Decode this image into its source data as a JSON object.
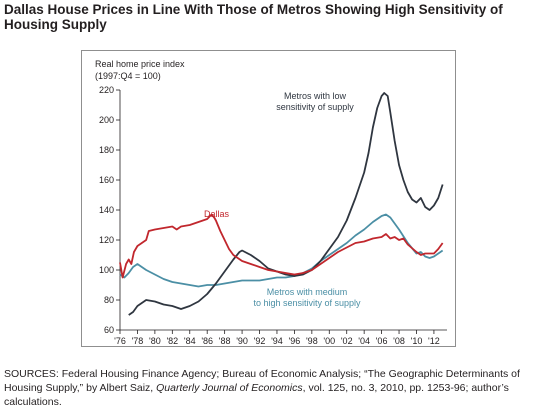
{
  "header": {
    "title": "Dallas House Prices in Line With Those of Metros Showing High Sensitivity of Housing Supply"
  },
  "footer": {
    "sources_prefix": "SOURCES: Federal Housing Finance Agency; Bureau of Economic Analysis; “The Geographic Determinants of Housing Supply,” by Albert Saiz, ",
    "journal": "Quarterly Journal of Economics",
    "sources_suffix": ", vol. 125, no. 3, 2010, pp. 1253-96; author’s calculations."
  },
  "chart_data": {
    "type": "line",
    "ylabel": "Real home price index",
    "ylabel_sub": "(1997:Q4 = 100)",
    "xlabel": "",
    "ylim": [
      60,
      220
    ],
    "xlim": [
      1976,
      2013.5
    ],
    "yticks": [
      60,
      80,
      100,
      120,
      140,
      160,
      180,
      200,
      220
    ],
    "xticks": [
      {
        "year": 1976,
        "label": "'76"
      },
      {
        "year": 1978,
        "label": "'78"
      },
      {
        "year": 1980,
        "label": "'80"
      },
      {
        "year": 1982,
        "label": "'82"
      },
      {
        "year": 1984,
        "label": "'84"
      },
      {
        "year": 1986,
        "label": "'86"
      },
      {
        "year": 1988,
        "label": "'88"
      },
      {
        "year": 1990,
        "label": "'90"
      },
      {
        "year": 1992,
        "label": "'92"
      },
      {
        "year": 1994,
        "label": "'94"
      },
      {
        "year": 1996,
        "label": "'96"
      },
      {
        "year": 1998,
        "label": "'98"
      },
      {
        "year": 2000,
        "label": "'00"
      },
      {
        "year": 2002,
        "label": "'02"
      },
      {
        "year": 2004,
        "label": "'04"
      },
      {
        "year": 2006,
        "label": "'06"
      },
      {
        "year": 2008,
        "label": "'08"
      },
      {
        "year": 2010,
        "label": "'10"
      },
      {
        "year": 2012,
        "label": "'12"
      }
    ],
    "grid": false,
    "legend": "inline labels",
    "series": [
      {
        "name": "Dallas",
        "color": "#c1272d",
        "label_lines": [
          "Dallas"
        ],
        "points": [
          [
            1976.0,
            105
          ],
          [
            1976.3,
            95
          ],
          [
            1976.7,
            104
          ],
          [
            1977.0,
            107
          ],
          [
            1977.3,
            104
          ],
          [
            1977.6,
            112
          ],
          [
            1978.0,
            116
          ],
          [
            1978.5,
            118
          ],
          [
            1979.0,
            120
          ],
          [
            1979.3,
            126
          ],
          [
            1980.0,
            127
          ],
          [
            1981.0,
            128
          ],
          [
            1982.0,
            129
          ],
          [
            1982.5,
            127
          ],
          [
            1983.0,
            129
          ],
          [
            1984.0,
            130
          ],
          [
            1985.0,
            132
          ],
          [
            1985.5,
            133
          ],
          [
            1986.0,
            134
          ],
          [
            1986.5,
            137
          ],
          [
            1986.8,
            135
          ],
          [
            1987.0,
            133
          ],
          [
            1987.5,
            126
          ],
          [
            1988.0,
            120
          ],
          [
            1988.5,
            114
          ],
          [
            1989.0,
            110
          ],
          [
            1990.0,
            106
          ],
          [
            1991.0,
            104
          ],
          [
            1992.0,
            102
          ],
          [
            1993.0,
            100
          ],
          [
            1994.0,
            99
          ],
          [
            1995.0,
            98
          ],
          [
            1996.0,
            97
          ],
          [
            1997.0,
            98
          ],
          [
            1998.0,
            100
          ],
          [
            1999.0,
            104
          ],
          [
            2000.0,
            108
          ],
          [
            2001.0,
            112
          ],
          [
            2002.0,
            115
          ],
          [
            2003.0,
            118
          ],
          [
            2004.0,
            119
          ],
          [
            2005.0,
            121
          ],
          [
            2006.0,
            122
          ],
          [
            2006.5,
            124
          ],
          [
            2007.0,
            121
          ],
          [
            2007.5,
            122
          ],
          [
            2008.0,
            120
          ],
          [
            2008.5,
            121
          ],
          [
            2009.0,
            117
          ],
          [
            2010.0,
            112
          ],
          [
            2010.5,
            110
          ],
          [
            2011.0,
            111
          ],
          [
            2012.0,
            111
          ],
          [
            2012.5,
            114
          ],
          [
            2013.0,
            118
          ]
        ]
      },
      {
        "name": "Metros with low sensitivity of supply",
        "color": "#2f3640",
        "label_lines": [
          "Metros with low",
          "sensitivity of supply"
        ],
        "points": [
          [
            1977.0,
            70
          ],
          [
            1977.5,
            72
          ],
          [
            1978.0,
            76
          ],
          [
            1979.0,
            80
          ],
          [
            1980.0,
            79
          ],
          [
            1981.0,
            77
          ],
          [
            1982.0,
            76
          ],
          [
            1983.0,
            74
          ],
          [
            1984.0,
            76
          ],
          [
            1985.0,
            79
          ],
          [
            1986.0,
            84
          ],
          [
            1987.0,
            91
          ],
          [
            1988.0,
            99
          ],
          [
            1989.0,
            107
          ],
          [
            1989.7,
            112
          ],
          [
            1990.0,
            113
          ],
          [
            1991.0,
            110
          ],
          [
            1992.0,
            106
          ],
          [
            1993.0,
            101
          ],
          [
            1994.0,
            99
          ],
          [
            1995.0,
            97
          ],
          [
            1996.0,
            96
          ],
          [
            1997.0,
            97
          ],
          [
            1998.0,
            100
          ],
          [
            1999.0,
            106
          ],
          [
            2000.0,
            114
          ],
          [
            2001.0,
            122
          ],
          [
            2002.0,
            133
          ],
          [
            2003.0,
            148
          ],
          [
            2004.0,
            165
          ],
          [
            2004.5,
            178
          ],
          [
            2005.0,
            195
          ],
          [
            2005.5,
            208
          ],
          [
            2006.0,
            216
          ],
          [
            2006.3,
            218
          ],
          [
            2006.7,
            216
          ],
          [
            2007.0,
            205
          ],
          [
            2007.5,
            186
          ],
          [
            2008.0,
            170
          ],
          [
            2008.5,
            160
          ],
          [
            2009.0,
            152
          ],
          [
            2009.5,
            147
          ],
          [
            2010.0,
            145
          ],
          [
            2010.5,
            148
          ],
          [
            2011.0,
            142
          ],
          [
            2011.5,
            140
          ],
          [
            2012.0,
            143
          ],
          [
            2012.5,
            148
          ],
          [
            2013.0,
            157
          ]
        ]
      },
      {
        "name": "Metros with medium to high sensitivity of supply",
        "color": "#4b8fa5",
        "label_lines": [
          "Metros with medium",
          "to high sensitivity of supply"
        ],
        "points": [
          [
            1976.0,
            97
          ],
          [
            1976.5,
            95
          ],
          [
            1977.0,
            98
          ],
          [
            1977.5,
            102
          ],
          [
            1978.0,
            104
          ],
          [
            1979.0,
            100
          ],
          [
            1980.0,
            97
          ],
          [
            1981.0,
            94
          ],
          [
            1982.0,
            92
          ],
          [
            1983.0,
            91
          ],
          [
            1984.0,
            90
          ],
          [
            1985.0,
            89
          ],
          [
            1986.0,
            90
          ],
          [
            1987.0,
            90
          ],
          [
            1988.0,
            91
          ],
          [
            1989.0,
            92
          ],
          [
            1990.0,
            93
          ],
          [
            1991.0,
            93
          ],
          [
            1992.0,
            93
          ],
          [
            1993.0,
            94
          ],
          [
            1994.0,
            95
          ],
          [
            1995.0,
            95
          ],
          [
            1996.0,
            96
          ],
          [
            1997.0,
            98
          ],
          [
            1998.0,
            101
          ],
          [
            1999.0,
            106
          ],
          [
            2000.0,
            110
          ],
          [
            2001.0,
            114
          ],
          [
            2002.0,
            118
          ],
          [
            2003.0,
            123
          ],
          [
            2004.0,
            127
          ],
          [
            2005.0,
            132
          ],
          [
            2006.0,
            136
          ],
          [
            2006.5,
            137
          ],
          [
            2007.0,
            135
          ],
          [
            2007.5,
            131
          ],
          [
            2008.0,
            127
          ],
          [
            2009.0,
            118
          ],
          [
            2010.0,
            111
          ],
          [
            2010.5,
            112
          ],
          [
            2011.0,
            109
          ],
          [
            2011.5,
            108
          ],
          [
            2012.0,
            109
          ],
          [
            2012.5,
            111
          ],
          [
            2013.0,
            113
          ]
        ]
      }
    ]
  }
}
